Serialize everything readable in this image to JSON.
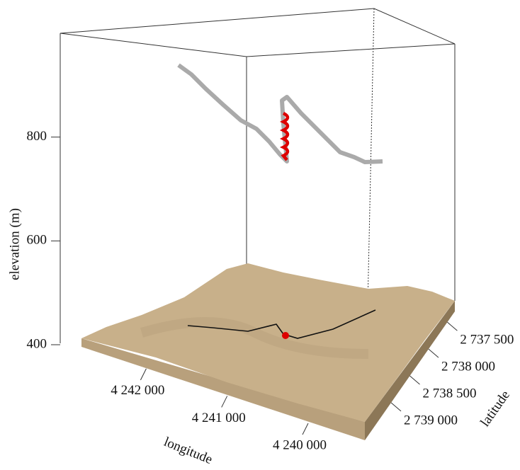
{
  "chart_data": {
    "type": "scatter3d",
    "xlabel": "longitude",
    "ylabel": "elevation (m)",
    "zlabel": "latitude",
    "xlim": [
      4242800,
      4239300
    ],
    "xticks": [
      {
        "value": 4242000,
        "label": "4 242 000"
      },
      {
        "value": 4241000,
        "label": "4 241 000"
      },
      {
        "value": 4240000,
        "label": "4 240 000"
      }
    ],
    "ylim": [
      400,
      1000
    ],
    "yticks": [
      400,
      600,
      800
    ],
    "zlim": [
      2737300,
      2739700
    ],
    "zticks": [
      {
        "value": 2737500,
        "label": "2 737 500"
      },
      {
        "value": 2738000,
        "label": "2 738 000"
      },
      {
        "value": 2738500,
        "label": "2 738 500"
      },
      {
        "value": 2739000,
        "label": "2 739 000"
      }
    ]
  }
}
